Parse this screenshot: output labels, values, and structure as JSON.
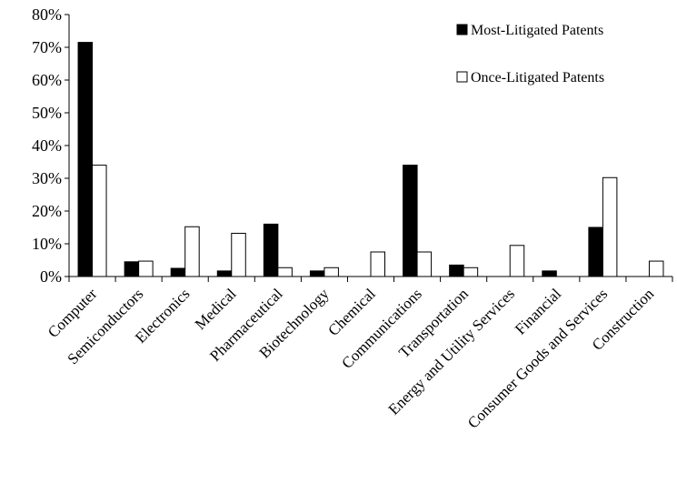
{
  "chart_data": {
    "type": "bar",
    "categories": [
      "Computer",
      "Semiconductors",
      "Electronics",
      "Medical",
      "Pharmaceutical",
      "Biotechnology",
      "Chemical",
      "Communications",
      "Transportation",
      "Energy and Utility Services",
      "Financial",
      "Consumer Goods and Services",
      "Construction"
    ],
    "series": [
      {
        "name": "Most-Litigated Patents",
        "color": "#000000",
        "values": [
          71.5,
          4.5,
          2.5,
          1.7,
          16.0,
          1.7,
          0,
          34.0,
          3.5,
          0,
          1.7,
          15.0,
          0
        ]
      },
      {
        "name": "Once-Litigated Patents",
        "color": "#ffffff",
        "values": [
          34.0,
          4.7,
          15.2,
          13.2,
          2.7,
          2.7,
          7.5,
          7.5,
          2.7,
          9.5,
          0,
          30.2,
          4.7
        ]
      }
    ],
    "ylim": [
      0,
      80
    ],
    "yticks": [
      0,
      10,
      20,
      30,
      40,
      50,
      60,
      70,
      80
    ],
    "ytick_labels": [
      "0%",
      "10%",
      "20%",
      "30%",
      "40%",
      "50%",
      "60%",
      "70%",
      "80%"
    ],
    "title": "",
    "xlabel": "",
    "ylabel": "",
    "grid": false,
    "legend_position": "top-right"
  }
}
